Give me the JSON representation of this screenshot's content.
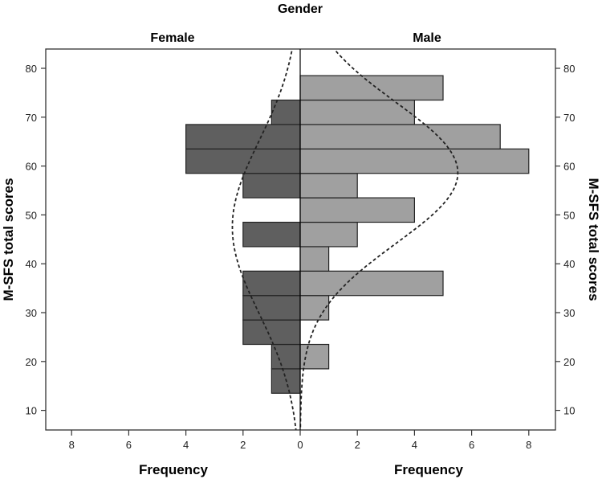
{
  "chart_data": {
    "type": "bar",
    "subtype": "population-pyramid-histogram",
    "title": "Gender",
    "panels": [
      "Female",
      "Male"
    ],
    "bin_width": 5,
    "bin_edges": [
      13.5,
      18.5,
      23.5,
      28.5,
      33.5,
      38.5,
      43.5,
      48.5,
      53.5,
      58.5,
      63.5,
      68.5,
      73.5,
      78.5
    ],
    "categories": [
      16,
      21,
      26,
      31,
      36,
      41,
      46,
      51,
      56,
      61,
      66,
      71,
      76
    ],
    "series": [
      {
        "name": "Female",
        "color": "#5f5f5f",
        "values": [
          1,
          1,
          2,
          2,
          2,
          0,
          2,
          0,
          2,
          4,
          4,
          1,
          0
        ]
      },
      {
        "name": "Male",
        "color": "#a0a0a0",
        "values": [
          0,
          1,
          0,
          1,
          5,
          1,
          2,
          4,
          2,
          8,
          7,
          4,
          5
        ]
      }
    ],
    "normal_curves": [
      {
        "name": "Female",
        "style": "dashed",
        "mean": 47.5,
        "peak_frequency": 2.3
      },
      {
        "name": "Male",
        "style": "dashed",
        "mean": 58.6,
        "peak_frequency": 5.5
      }
    ],
    "ylabel": "M-SFS total scores",
    "ylabel_right": "M-SFS total scores",
    "xlabel_left": "Frequency",
    "xlabel_right": "Frequency",
    "ylim": [
      6,
      84
    ],
    "yticks": [
      10,
      20,
      30,
      40,
      50,
      60,
      70,
      80
    ],
    "xlim": [
      0,
      9
    ],
    "xticks_left": [
      8,
      6,
      4,
      2,
      0
    ],
    "xticks_right": [
      0,
      2,
      4,
      6,
      8
    ],
    "grid": false,
    "legend": null
  }
}
